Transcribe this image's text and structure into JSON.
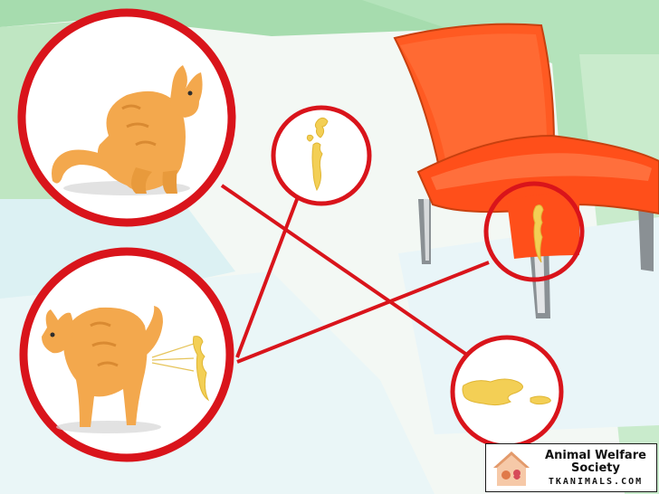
{
  "watermark": {
    "title": "Animal Welfare Society",
    "site": "TKANIMALS.COM"
  },
  "colors": {
    "accent_red": "#d9141b",
    "chair_orange": "#ff5a22",
    "cat_orange": "#f2a54a",
    "urine_yellow": "#f3cf55",
    "background_green": "#a8dcb0",
    "floor_light": "#f8fbf8"
  },
  "scene": {
    "callouts": [
      "cat-squatting-callout",
      "urine-drops-callout",
      "cat-spraying-callout",
      "chair-stain-callout",
      "floor-puddle-callout"
    ],
    "icons": [
      "cat-squatting-icon",
      "cat-spraying-icon",
      "urine-drops-icon",
      "chair-icon",
      "puddle-icon",
      "house-logo-icon"
    ]
  }
}
